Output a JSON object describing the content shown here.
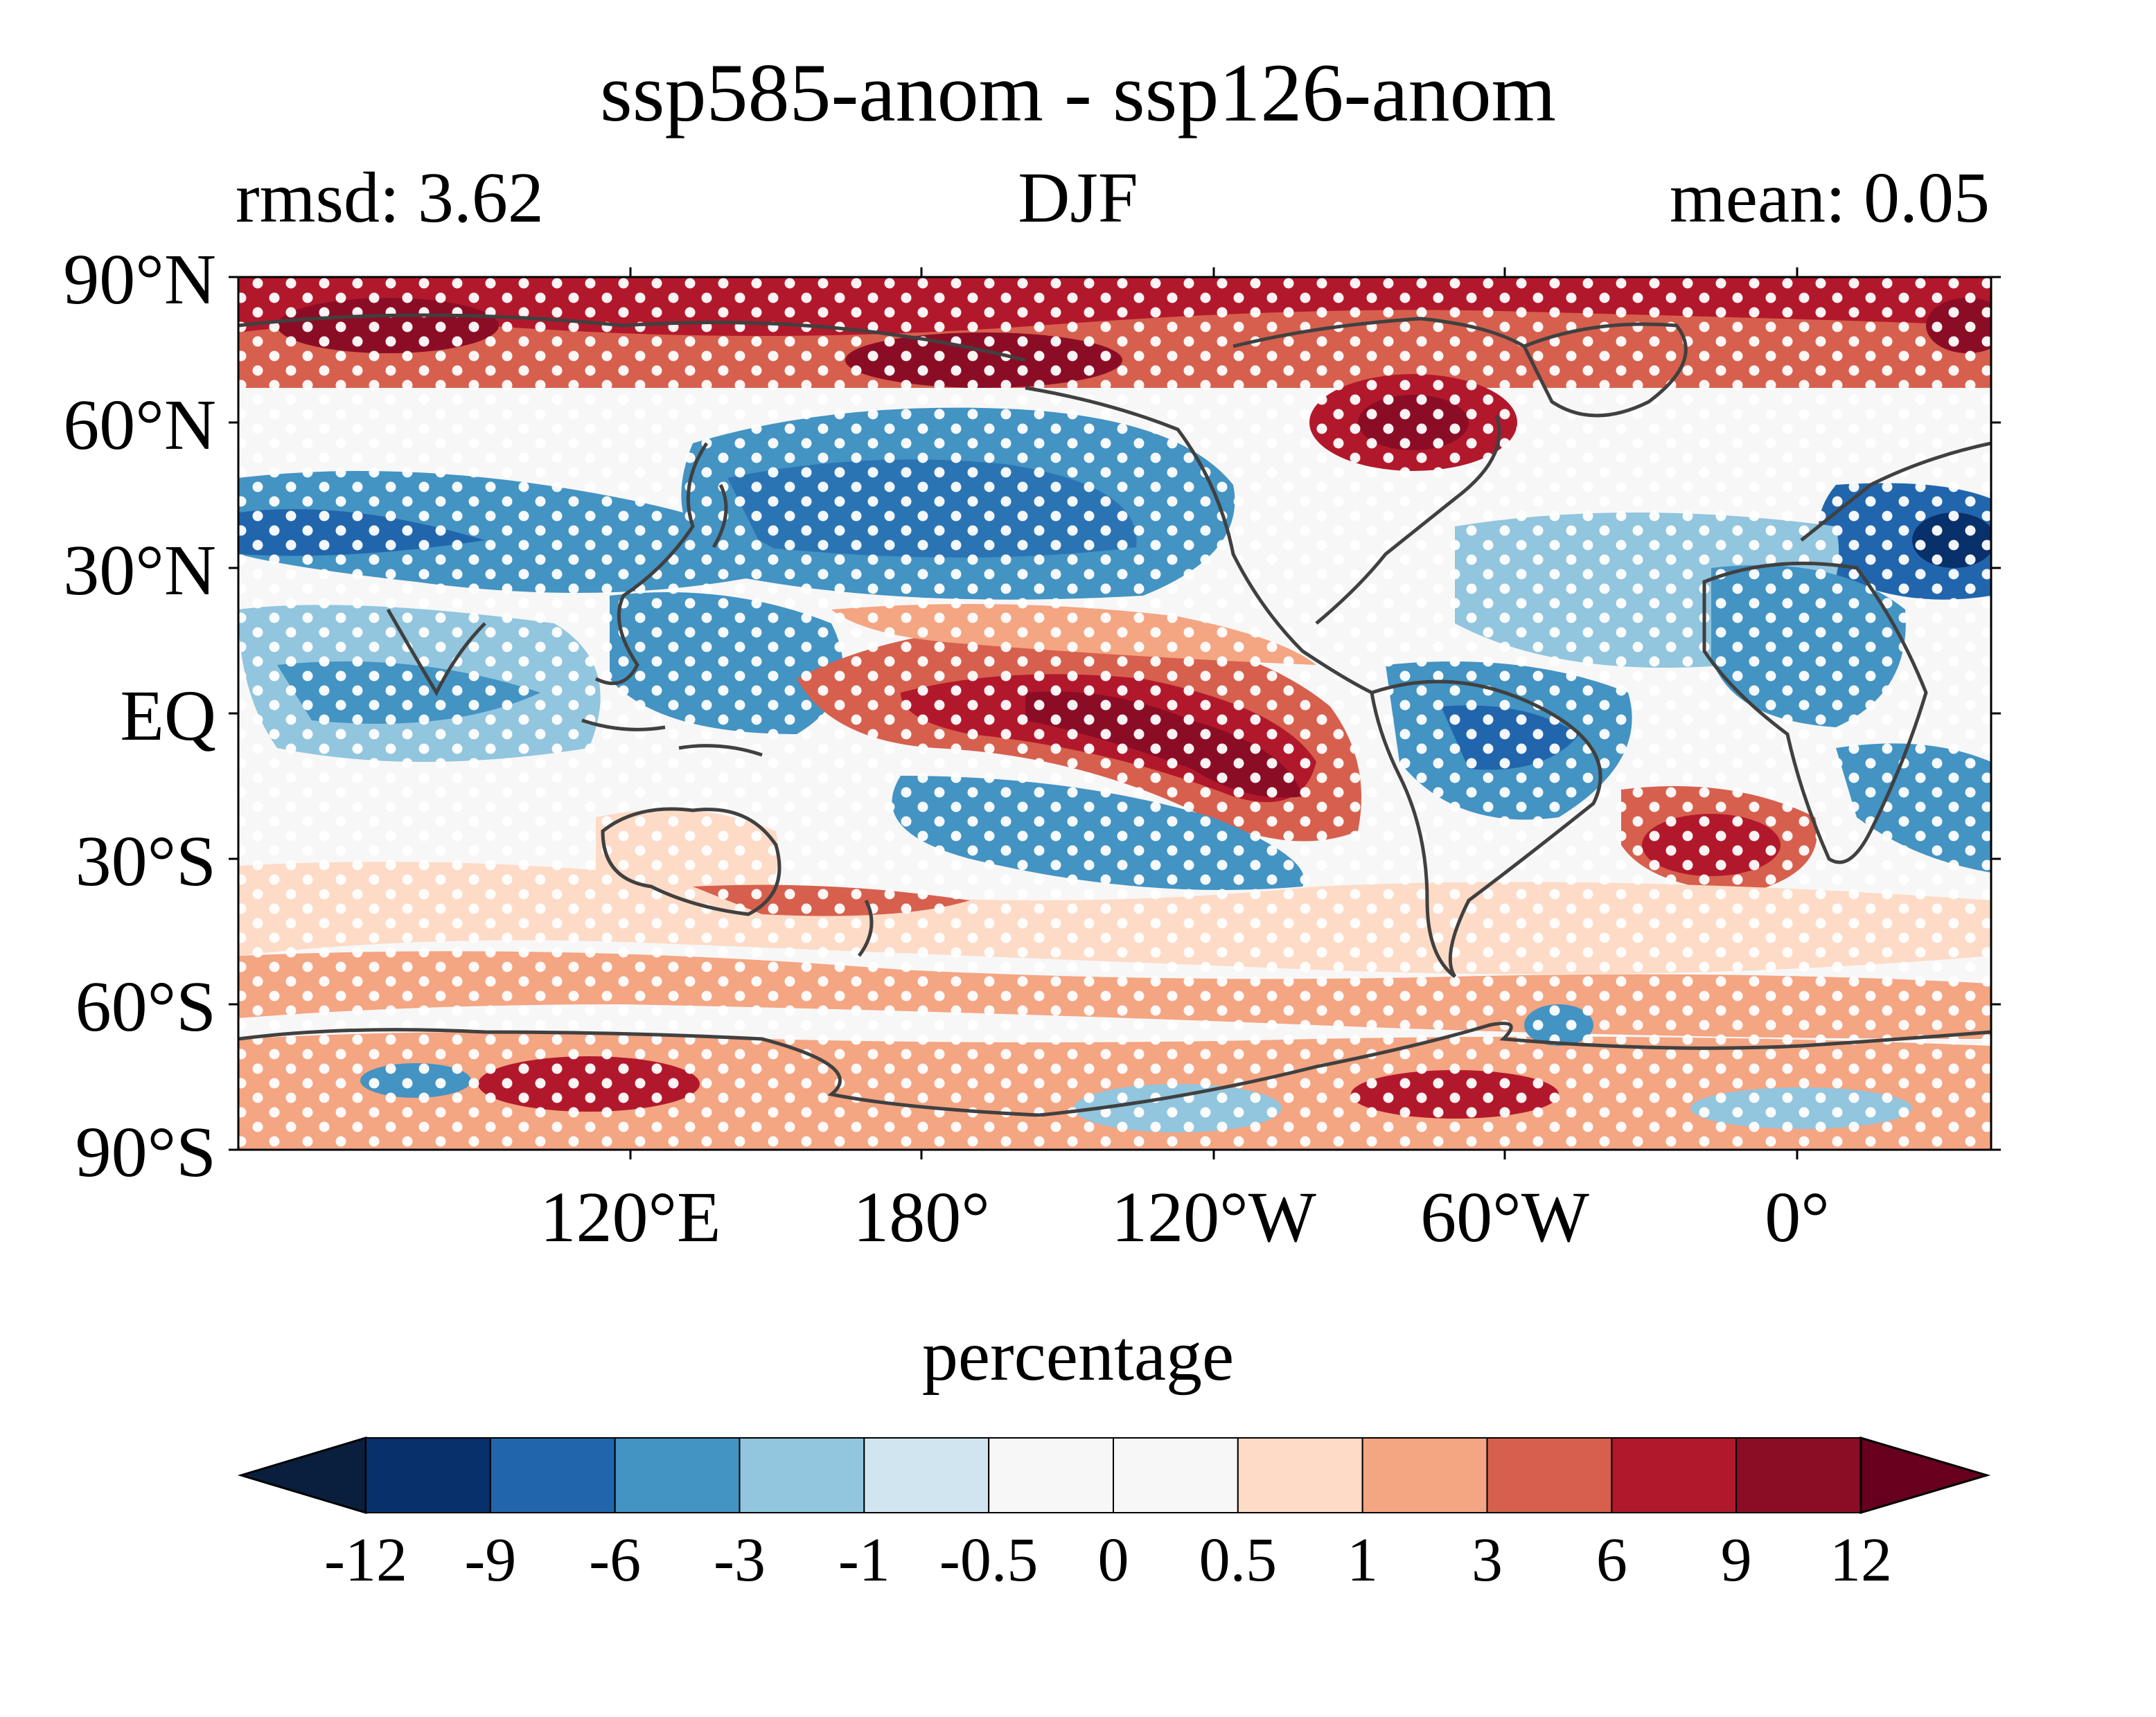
{
  "title": "ssp585-anom - ssp126-anom",
  "left_subtitle": "rmsd: 3.62",
  "center_subtitle": "DJF",
  "right_subtitle": "mean: 0.05",
  "lat_labels": [
    "90°N",
    "60°N",
    "30°N",
    "EQ",
    "30°S",
    "60°S",
    "90°S"
  ],
  "lon_labels": [
    "120°E",
    "180°",
    "120°W",
    "60°W",
    "0°"
  ],
  "colorbar": {
    "title": "percentage",
    "levels": [
      "-12",
      "-9",
      "-6",
      "-3",
      "-1",
      "-0.5",
      "0",
      "0.5",
      "1",
      "3",
      "6",
      "9",
      "12"
    ],
    "colors": [
      "#0a1f3d",
      "#08306b",
      "#2166ac",
      "#4393c3",
      "#92c5de",
      "#d1e5f0",
      "#f7f7f7",
      "#f7f7f7",
      "#fddbc7",
      "#f4a582",
      "#d6604d",
      "#b2182b",
      "#8b0d25",
      "#67001f"
    ],
    "extend": "both"
  },
  "map_colors": {
    "strong_warm": "#b2182b",
    "darkest_warm": "#67001f",
    "warm": "#d6604d",
    "light_warm": "#f4a582",
    "neutral": "#f7f7f7",
    "light_cool": "#92c5de",
    "cool": "#4393c3",
    "strong_cool": "#2166ac",
    "coastline": "#404040",
    "stipple": "#ffffff"
  }
}
